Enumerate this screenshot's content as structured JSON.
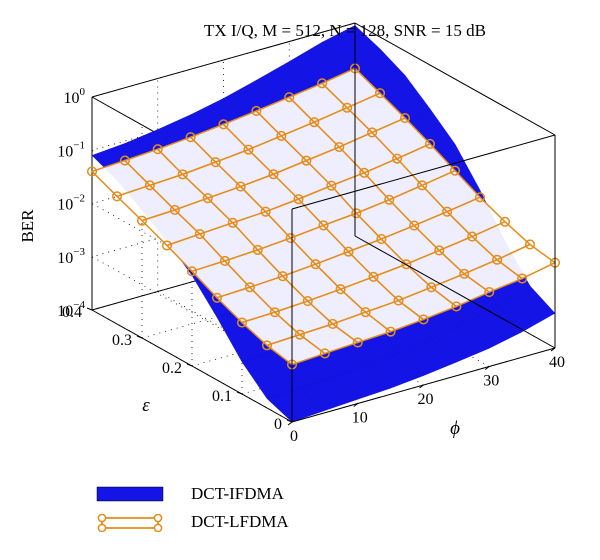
{
  "chart_data": {
    "type": "surface",
    "title": "TX I/Q, M = 512, N = 128, SNR = 15 dB",
    "xlabel": "ϕ",
    "ylabel": "ε",
    "zlabel": "BER",
    "x_ticks": [
      0,
      10,
      20,
      30,
      40
    ],
    "y_ticks": [
      0,
      0.1,
      0.2,
      0.3,
      0.4
    ],
    "z_ticks": [
      "10^-4",
      "10^-3",
      "10^-2",
      "10^-1",
      "10^0"
    ],
    "xlim": [
      0,
      40
    ],
    "ylim": [
      0,
      0.4
    ],
    "zlim": [
      0.0001,
      1
    ],
    "z_scale": "log",
    "legend_position": "bottom-left",
    "grid": true,
    "series": [
      {
        "name": "DCT-IFDMA",
        "color": "#1414e6",
        "style": "surface",
        "x": [
          0,
          5,
          10,
          15,
          20,
          25,
          30,
          35,
          40
        ],
        "y": [
          0,
          0.05,
          0.1,
          0.15,
          0.2,
          0.25,
          0.3,
          0.35,
          0.4
        ],
        "z": [
          [
            0.0001,
            0.00011,
            0.00012,
            0.00013,
            0.00015,
            0.00018,
            0.00022,
            0.0003,
            0.00045
          ],
          [
            0.00015,
            0.00016,
            0.00017,
            0.00019,
            0.00022,
            0.00027,
            0.00035,
            0.0005,
            0.0008
          ],
          [
            0.0004,
            0.00042,
            0.00045,
            0.0005,
            0.0006,
            0.0008,
            0.0011,
            0.0017,
            0.003
          ],
          [
            0.0015,
            0.0016,
            0.0017,
            0.002,
            0.0025,
            0.0035,
            0.005,
            0.008,
            0.015
          ],
          [
            0.005,
            0.0055,
            0.006,
            0.007,
            0.009,
            0.012,
            0.018,
            0.03,
            0.06
          ],
          [
            0.012,
            0.013,
            0.015,
            0.018,
            0.022,
            0.03,
            0.05,
            0.09,
            0.15
          ],
          [
            0.025,
            0.028,
            0.032,
            0.04,
            0.055,
            0.08,
            0.12,
            0.2,
            0.35
          ],
          [
            0.05,
            0.055,
            0.065,
            0.08,
            0.11,
            0.16,
            0.25,
            0.4,
            0.6
          ],
          [
            0.08,
            0.09,
            0.11,
            0.14,
            0.19,
            0.28,
            0.42,
            0.65,
            0.9
          ]
        ]
      },
      {
        "name": "DCT-LFDMA",
        "color": "#e58c1a",
        "style": "mesh-with-circle-markers",
        "x": [
          0,
          5,
          10,
          15,
          20,
          25,
          30,
          35,
          40
        ],
        "y": [
          0,
          0.05,
          0.1,
          0.15,
          0.2,
          0.25,
          0.3,
          0.35,
          0.4
        ],
        "z": [
          [
            0.0012,
            0.0013,
            0.0014,
            0.0015,
            0.0017,
            0.002,
            0.0025,
            0.003,
            0.004
          ],
          [
            0.0015,
            0.0016,
            0.0017,
            0.0019,
            0.0021,
            0.0025,
            0.003,
            0.0037,
            0.0048
          ],
          [
            0.0022,
            0.0023,
            0.0025,
            0.0028,
            0.0032,
            0.0037,
            0.0045,
            0.0055,
            0.007
          ],
          [
            0.0035,
            0.0037,
            0.004,
            0.0045,
            0.0052,
            0.006,
            0.0072,
            0.0088,
            0.011
          ],
          [
            0.006,
            0.0063,
            0.0068,
            0.0076,
            0.0088,
            0.01,
            0.012,
            0.015,
            0.019
          ],
          [
            0.01,
            0.011,
            0.012,
            0.013,
            0.015,
            0.018,
            0.021,
            0.026,
            0.033
          ],
          [
            0.016,
            0.017,
            0.019,
            0.021,
            0.024,
            0.029,
            0.035,
            0.044,
            0.055
          ],
          [
            0.025,
            0.027,
            0.029,
            0.033,
            0.038,
            0.046,
            0.056,
            0.07,
            0.088
          ],
          [
            0.04,
            0.043,
            0.047,
            0.053,
            0.062,
            0.074,
            0.09,
            0.11,
            0.14
          ]
        ]
      }
    ]
  }
}
